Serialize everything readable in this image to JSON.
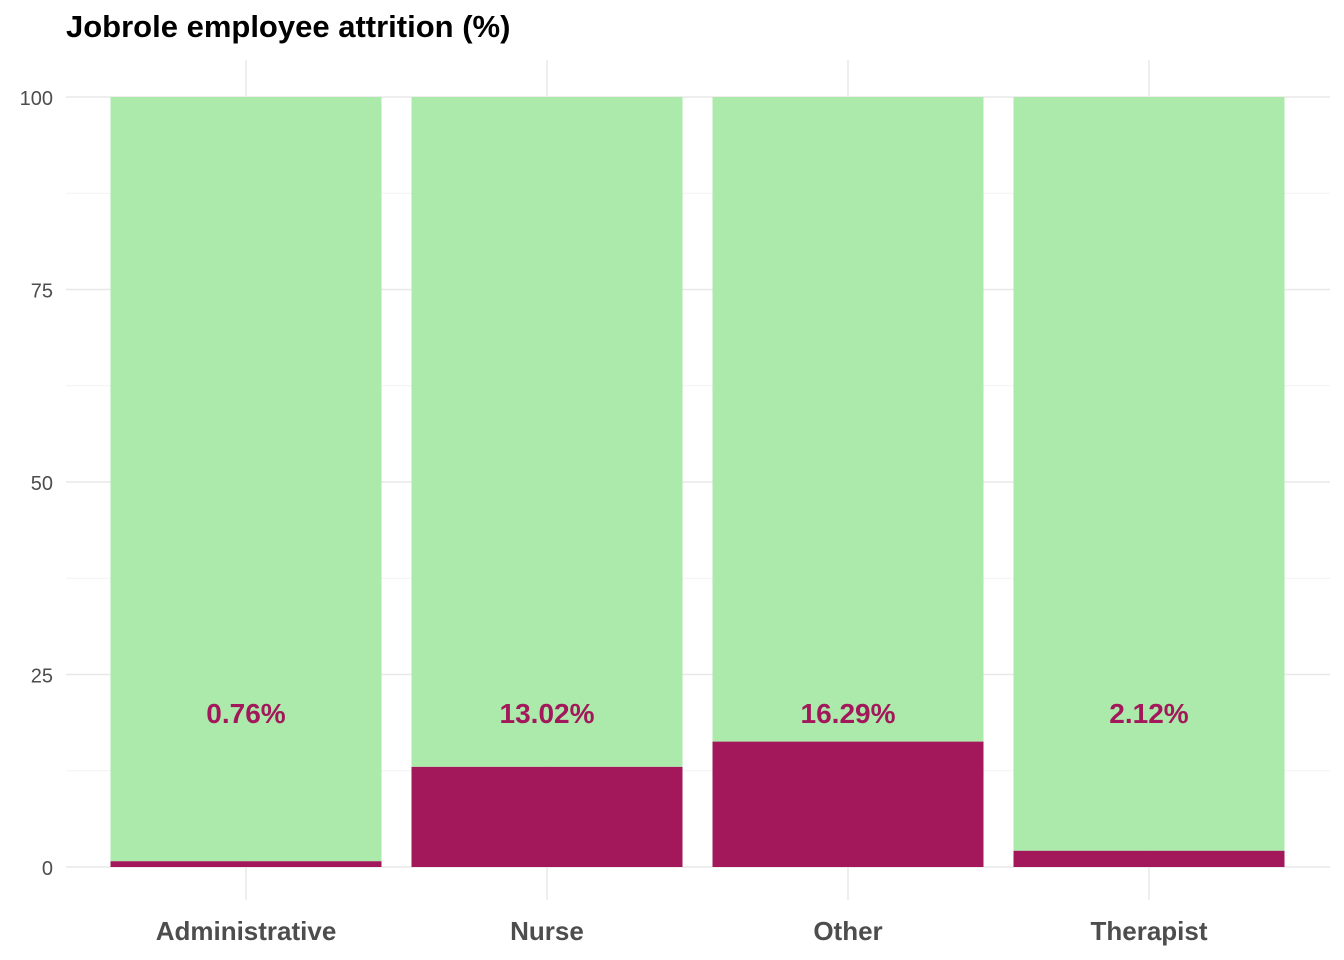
{
  "chart_data": {
    "type": "bar",
    "stacked": true,
    "title": "Jobrole employee attrition (%)",
    "xlabel": "",
    "ylabel": "",
    "categories": [
      "Administrative",
      "Nurse",
      "Other",
      "Therapist"
    ],
    "series": [
      {
        "values": [
          0.76,
          13.02,
          16.29,
          2.12
        ],
        "color": "#a2185b"
      },
      {
        "values": [
          99.24,
          86.98,
          83.71,
          97.88
        ],
        "color": "#abeaab"
      }
    ],
    "data_labels": [
      "0.76%",
      "13.02%",
      "16.29%",
      "2.12%"
    ],
    "data_label_y": 20,
    "data_label_color": "#a2185b",
    "ylim": [
      0,
      100
    ],
    "yticks": [
      0,
      25,
      50,
      75,
      100
    ],
    "grid": true,
    "legend": "none"
  }
}
